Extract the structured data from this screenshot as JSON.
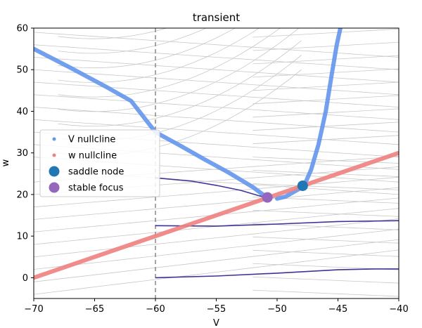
{
  "chart_data": {
    "type": "line",
    "title": "transient",
    "xlabel": "V",
    "ylabel": "w",
    "xlim": [
      -70,
      -40
    ],
    "ylim": [
      -5,
      60
    ],
    "x_ticks": [
      -70,
      -65,
      -60,
      -55,
      -50,
      -45,
      -40
    ],
    "y_ticks": [
      0,
      10,
      20,
      30,
      40,
      50,
      60
    ],
    "x_tick_labels": [
      "−70",
      "−65",
      "−60",
      "−55",
      "−50",
      "−45",
      "−40"
    ],
    "y_tick_labels": [
      "0",
      "10",
      "20",
      "30",
      "40",
      "50",
      "60"
    ],
    "grid": false,
    "legend_position": "center-left",
    "vertical_line": {
      "x": -60,
      "style": "dashed",
      "color": "#777777"
    },
    "series": [
      {
        "name": "V nullcline",
        "color": "#6495ed",
        "segments": [
          [
            [
              -70,
              55
            ],
            [
              -67,
              50.5
            ],
            [
              -64,
              45.8
            ],
            [
              -62,
              42.5
            ],
            [
              -60,
              35
            ],
            [
              -58,
              31.8
            ],
            [
              -56,
              28.5
            ],
            [
              -54,
              25.3
            ],
            [
              -52,
              21.8
            ],
            [
              -50.8,
              19.2
            ]
          ],
          [
            [
              -50,
              19
            ],
            [
              -49.3,
              19.5
            ],
            [
              -48.4,
              21
            ],
            [
              -47.8,
              22
            ],
            [
              -47.2,
              26
            ],
            [
              -46.6,
              32
            ],
            [
              -46,
              40
            ],
            [
              -45.5,
              49
            ],
            [
              -45.1,
              56
            ],
            [
              -44.8,
              60
            ]
          ]
        ]
      },
      {
        "name": "w nullcline",
        "color": "#f08080",
        "points": [
          [
            -70,
            0
          ],
          [
            -40,
            30
          ]
        ]
      }
    ],
    "trajectories": [
      {
        "color": "#3d3596",
        "points": [
          [
            -60,
            24
          ],
          [
            -57,
            23.2
          ],
          [
            -55,
            22.2
          ],
          [
            -53,
            21
          ],
          [
            -51.6,
            19.8
          ],
          [
            -50.8,
            19.2
          ]
        ]
      },
      {
        "color": "#3d3596",
        "points": [
          [
            -60,
            12.5
          ],
          [
            -55,
            12.4
          ],
          [
            -50,
            12.9
          ],
          [
            -45,
            13.5
          ],
          [
            -40,
            13.7
          ]
        ]
      },
      {
        "color": "#3d3596",
        "points": [
          [
            -60,
            0
          ],
          [
            -55,
            0.4
          ],
          [
            -50,
            1.1
          ],
          [
            -45,
            1.9
          ],
          [
            -42,
            2.1
          ],
          [
            -40,
            2.1
          ]
        ]
      }
    ],
    "fixed_points": [
      {
        "name": "saddle node",
        "x": -47.9,
        "y": 22.1,
        "color": "#1f77b4"
      },
      {
        "name": "stable focus",
        "x": -50.8,
        "y": 19.3,
        "color": "#9467bd"
      }
    ],
    "legend": [
      {
        "label": "V nullcline",
        "kind": "small-dot",
        "color": "#6495ed"
      },
      {
        "label": "w nullcline",
        "kind": "small-dot",
        "color": "#f08080"
      },
      {
        "label": "saddle node",
        "kind": "big-dot",
        "color": "#1f77b4"
      },
      {
        "label": "stable focus",
        "kind": "big-dot",
        "color": "#9467bd"
      }
    ],
    "streamline_color": "#c8c8c8"
  }
}
